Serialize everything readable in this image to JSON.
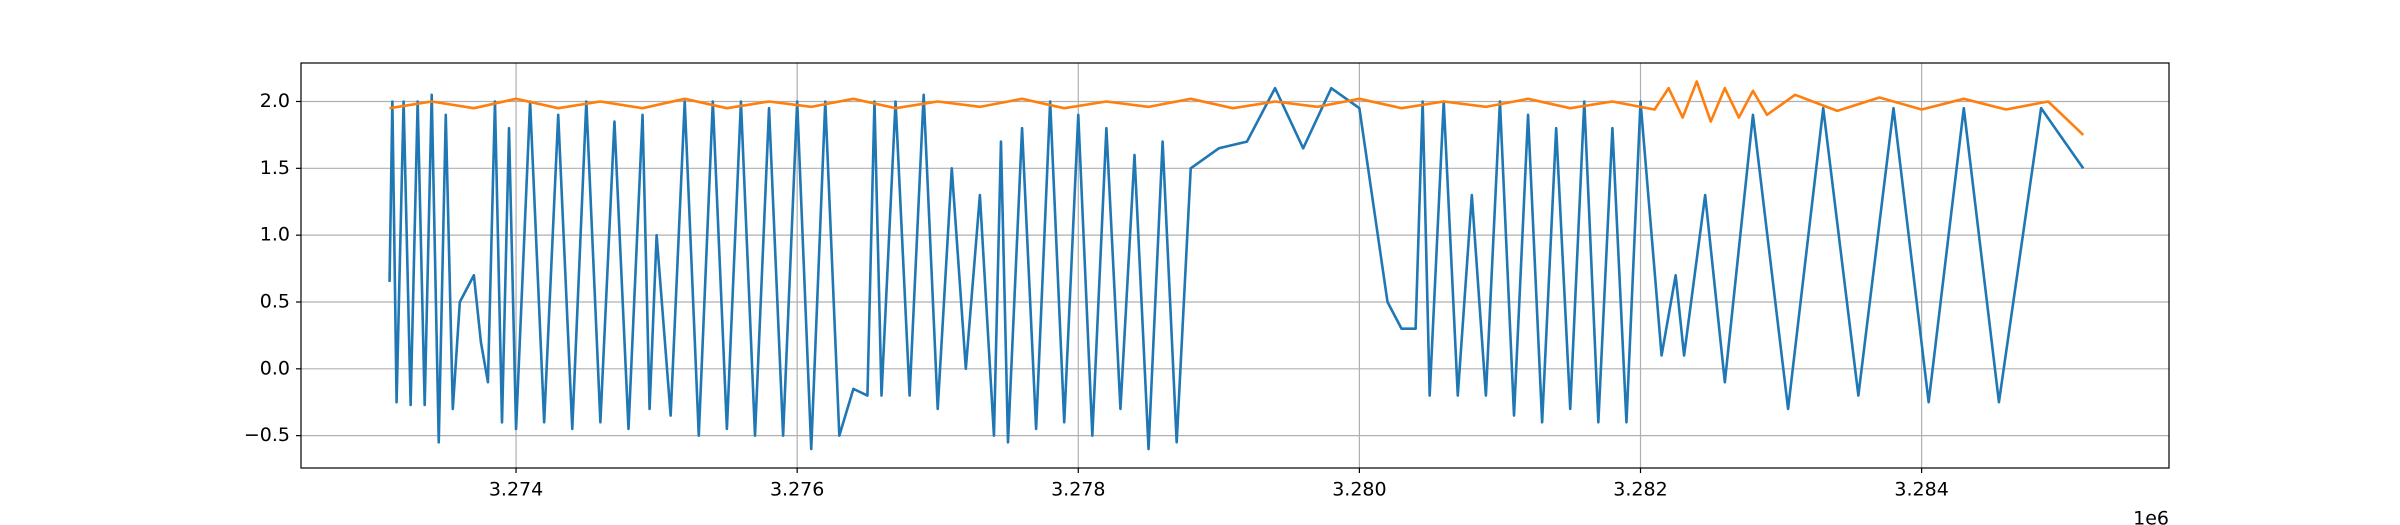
{
  "chart_data": {
    "type": "line",
    "offset_label": "1e6",
    "xlim": [
      3272470,
      3285760
    ],
    "xticks": [
      {
        "value": 3274000,
        "label": "3.274"
      },
      {
        "value": 3276000,
        "label": "3.276"
      },
      {
        "value": 3278000,
        "label": "3.278"
      },
      {
        "value": 3280000,
        "label": "3.280"
      },
      {
        "value": 3282000,
        "label": "3.282"
      },
      {
        "value": 3284000,
        "label": "3.284"
      }
    ],
    "ylim": [
      -0.742,
      2.288
    ],
    "yticks": [
      {
        "value": -0.5,
        "label": "−0.5"
      },
      {
        "value": 0,
        "label": "0.0"
      },
      {
        "value": 0.5,
        "label": "0.5"
      },
      {
        "value": 1,
        "label": "1.0"
      },
      {
        "value": 1.5,
        "label": "1.5"
      },
      {
        "value": 2,
        "label": "2.0"
      }
    ],
    "grid": true,
    "series": [
      {
        "color": "#1f77b4",
        "x": [
          3273100,
          3273120,
          3273150,
          3273200,
          3273250,
          3273300,
          3273350,
          3273400,
          3273450,
          3273500,
          3273550,
          3273600,
          3273700,
          3273750,
          3273800,
          3273850,
          3273900,
          3273950,
          3274000,
          3274100,
          3274200,
          3274300,
          3274400,
          3274500,
          3274600,
          3274700,
          3274800,
          3274900,
          3274950,
          3275000,
          3275100,
          3275200,
          3275300,
          3275400,
          3275500,
          3275600,
          3275700,
          3275800,
          3275900,
          3276000,
          3276100,
          3276200,
          3276300,
          3276400,
          3276500,
          3276550,
          3276600,
          3276700,
          3276800,
          3276900,
          3277000,
          3277100,
          3277200,
          3277300,
          3277400,
          3277450,
          3277500,
          3277600,
          3277700,
          3277800,
          3277900,
          3278000,
          3278100,
          3278200,
          3278300,
          3278400,
          3278500,
          3278600,
          3278700,
          3278800,
          3279000,
          3279200,
          3279400,
          3279600,
          3279800,
          3280000,
          3280200,
          3280300,
          3280400,
          3280450,
          3280500,
          3280600,
          3280700,
          3280800,
          3280900,
          3281000,
          3281100,
          3281200,
          3281300,
          3281400,
          3281500,
          3281600,
          3281700,
          3281800,
          3281900,
          3282000,
          3282150,
          3282250,
          3282310,
          3282460,
          3282600,
          3282800,
          3283050,
          3283300,
          3283550,
          3283800,
          3284050,
          3284300,
          3284550,
          3284850,
          3285150
        ],
        "values": [
          0.65,
          2.0,
          -0.25,
          2.0,
          -0.27,
          2.0,
          -0.27,
          2.05,
          -0.55,
          1.9,
          -0.3,
          0.5,
          0.7,
          0.2,
          -0.1,
          2.0,
          -0.4,
          1.8,
          -0.45,
          2.0,
          -0.4,
          1.9,
          -0.45,
          2.0,
          -0.4,
          1.85,
          -0.45,
          1.9,
          -0.3,
          1.0,
          -0.35,
          2.0,
          -0.5,
          2.0,
          -0.45,
          2.0,
          -0.5,
          1.95,
          -0.5,
          2.0,
          -0.6,
          2.0,
          -0.5,
          -0.15,
          -0.2,
          2.0,
          -0.2,
          2.0,
          -0.2,
          2.05,
          -0.3,
          1.5,
          0.0,
          1.3,
          -0.5,
          1.7,
          -0.55,
          1.8,
          -0.45,
          2.0,
          -0.4,
          1.9,
          -0.5,
          1.8,
          -0.3,
          1.6,
          -0.6,
          1.7,
          -0.55,
          1.5,
          1.65,
          1.7,
          2.1,
          1.65,
          2.1,
          1.95,
          0.5,
          0.3,
          0.3,
          2.0,
          -0.2,
          2.0,
          -0.2,
          1.3,
          -0.2,
          2.0,
          -0.35,
          1.9,
          -0.4,
          1.8,
          -0.3,
          2.0,
          -0.4,
          1.8,
          -0.4,
          2.0,
          0.1,
          0.7,
          0.1,
          1.3,
          -0.1,
          1.9,
          -0.3,
          1.95,
          -0.2,
          1.95,
          -0.25,
          1.95,
          -0.25,
          1.95,
          1.5
        ]
      },
      {
        "color": "#ff7f0e",
        "x": [
          3273100,
          3273400,
          3273700,
          3274000,
          3274300,
          3274600,
          3274900,
          3275200,
          3275500,
          3275800,
          3276100,
          3276400,
          3276700,
          3277000,
          3277300,
          3277600,
          3277900,
          3278200,
          3278500,
          3278800,
          3279100,
          3279400,
          3279700,
          3280000,
          3280300,
          3280600,
          3280900,
          3281200,
          3281500,
          3281800,
          3282100,
          3282200,
          3282300,
          3282400,
          3282500,
          3282600,
          3282700,
          3282800,
          3282900,
          3283100,
          3283400,
          3283700,
          3284000,
          3284300,
          3284600,
          3284900,
          3285000,
          3285150
        ],
        "values": [
          1.95,
          2.0,
          1.95,
          2.02,
          1.95,
          2.0,
          1.95,
          2.02,
          1.95,
          2.0,
          1.96,
          2.02,
          1.95,
          2.0,
          1.96,
          2.02,
          1.95,
          2.0,
          1.96,
          2.02,
          1.95,
          2.0,
          1.96,
          2.02,
          1.95,
          2.0,
          1.96,
          2.02,
          1.95,
          2.0,
          1.94,
          2.1,
          1.88,
          2.15,
          1.85,
          2.1,
          1.88,
          2.08,
          1.9,
          2.05,
          1.93,
          2.03,
          1.94,
          2.02,
          1.94,
          2.0,
          1.9,
          1.75
        ]
      }
    ]
  }
}
